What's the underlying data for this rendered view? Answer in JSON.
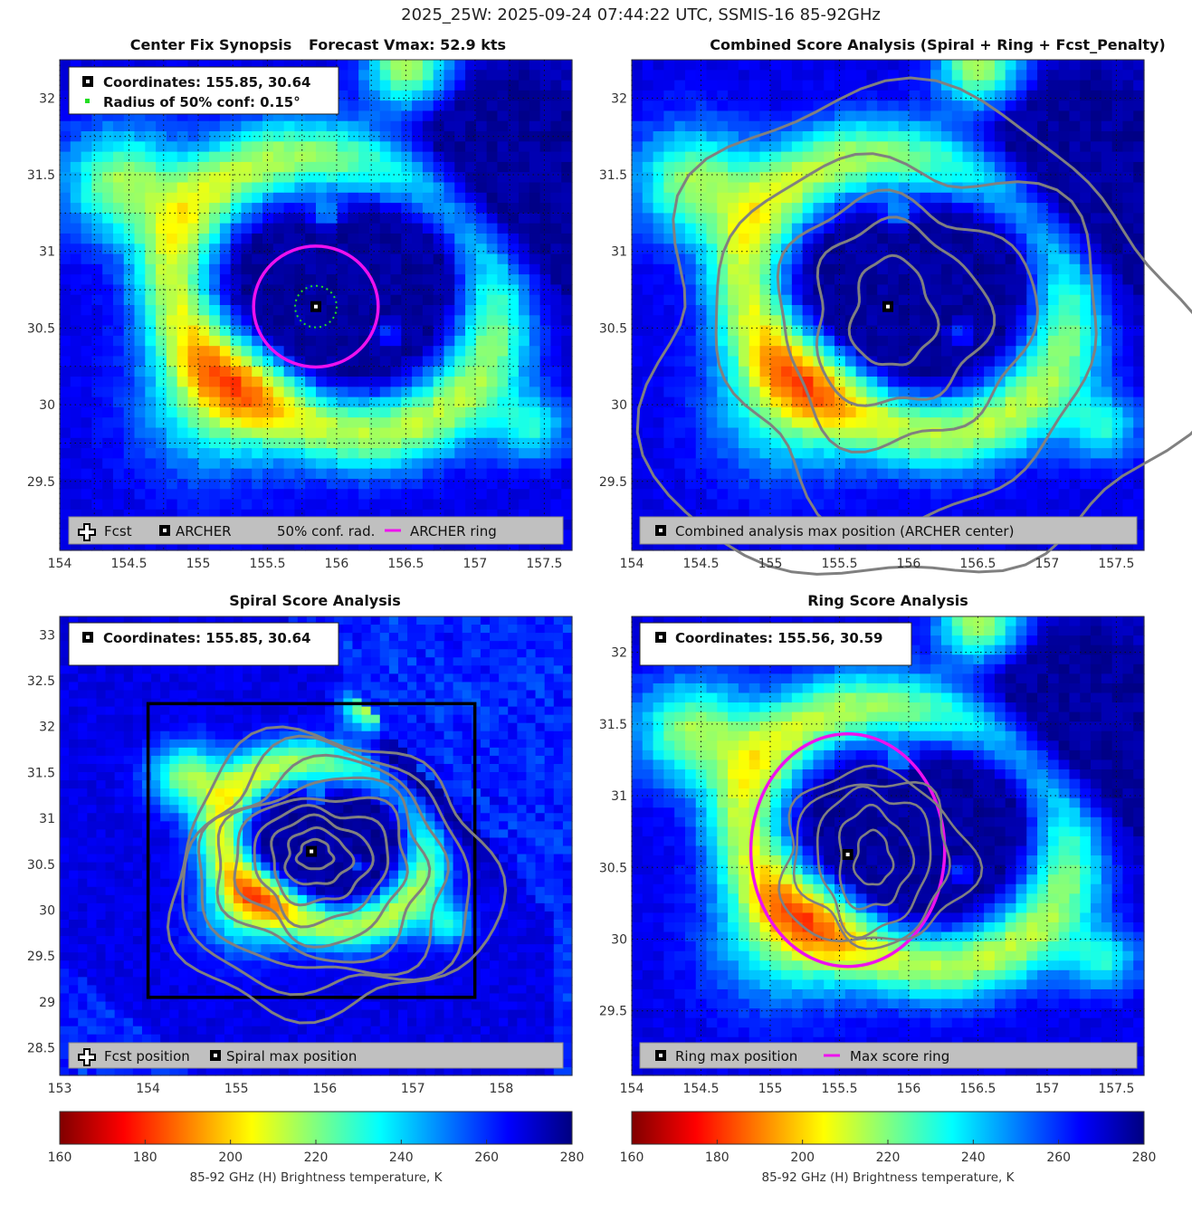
{
  "figure": {
    "title": "2025_25W: 2025-09-24 07:44:22 UTC, SSMIS-16 85-92GHz"
  },
  "colormap": {
    "name": "jet (reversed)",
    "stops": [
      "#800000",
      "#ff0000",
      "#ff8000",
      "#ffff00",
      "#80ff80",
      "#00ffff",
      "#0080ff",
      "#0000ff",
      "#000080"
    ],
    "cold_core": "#0000a0",
    "ring_color": "#ee11ee",
    "contour_color": "#808080",
    "legend_bg": "#c0c0c0"
  },
  "panels": [
    {
      "id": "center-fix",
      "title_left": "Center Fix Synopsis",
      "title_right": "Forecast Vmax: 52.9 kts",
      "x_ticks": [
        "154",
        "154.5",
        "155",
        "155.5",
        "156",
        "156.5",
        "157",
        "157.5"
      ],
      "y_ticks": [
        "32",
        "31.5",
        "31",
        "30.5",
        "30",
        "29.5"
      ],
      "info": [
        "Coordinates: 155.85, 30.64",
        "Radius of 50% conf: 0.15°"
      ],
      "legend": [
        "Fcst",
        "ARCHER",
        "50% conf. rad.",
        "ARCHER ring"
      ]
    },
    {
      "id": "combined",
      "title": "Combined Score Analysis (Spiral + Ring + Fcst_Penalty)",
      "x_ticks": [
        "154",
        "154.5",
        "155",
        "155.5",
        "156",
        "156.5",
        "157",
        "157.5"
      ],
      "y_ticks": [
        "32",
        "31.5",
        "31",
        "30.5",
        "30",
        "29.5"
      ],
      "legend": [
        "Combined analysis max position (ARCHER center)"
      ]
    },
    {
      "id": "spiral",
      "title": "Spiral Score Analysis",
      "x_ticks": [
        "153",
        "154",
        "155",
        "156",
        "157",
        "158"
      ],
      "y_ticks": [
        "33",
        "32.5",
        "32",
        "31.5",
        "31",
        "30.5",
        "30",
        "29.5",
        "29",
        "28.5"
      ],
      "info": [
        "Coordinates: 155.85, 30.64"
      ],
      "legend": [
        "Fcst position",
        "Spiral max position"
      ]
    },
    {
      "id": "ring",
      "title": "Ring Score Analysis",
      "x_ticks": [
        "154",
        "154.5",
        "155",
        "155.5",
        "156",
        "156.5",
        "157",
        "157.5"
      ],
      "y_ticks": [
        "32",
        "31.5",
        "31",
        "30.5",
        "30",
        "29.5"
      ],
      "info": [
        "Coordinates: 155.56, 30.59"
      ],
      "legend": [
        "Ring max position",
        "Max score ring"
      ]
    }
  ],
  "colorbars": [
    {
      "id": "left",
      "ticks": [
        "160",
        "180",
        "200",
        "220",
        "240",
        "260",
        "280"
      ],
      "label": "85-92 GHz (H) Brightness temperature, K"
    },
    {
      "id": "right",
      "ticks": [
        "160",
        "180",
        "200",
        "220",
        "240",
        "260",
        "280"
      ],
      "label": "85-92 GHz (H) Brightness temperature, K"
    }
  ],
  "chart_data": [
    {
      "type": "heatmap",
      "title": "Center Fix Synopsis — Forecast Vmax: 52.9 kts",
      "xlabel": "",
      "ylabel": "",
      "xlim": [
        154.0,
        157.7
      ],
      "ylim": [
        29.05,
        32.25
      ],
      "value_range_K": [
        160,
        280
      ],
      "center": [
        155.85,
        30.64
      ],
      "ring_radius_deg": 0.45,
      "conf_radius_deg": 0.15,
      "grid": true
    },
    {
      "type": "heatmap",
      "title": "Combined Score Analysis (Spiral + Ring + Fcst_Penalty)",
      "xlim": [
        154.0,
        157.7
      ],
      "ylim": [
        29.05,
        32.25
      ],
      "value_range_K": [
        160,
        280
      ],
      "max_position": [
        155.85,
        30.64
      ],
      "grid": true
    },
    {
      "type": "heatmap",
      "title": "Spiral Score Analysis",
      "xlim": [
        153.0,
        158.8
      ],
      "ylim": [
        28.2,
        33.2
      ],
      "value_range_K": [
        160,
        280
      ],
      "max_position": [
        155.85,
        30.64
      ],
      "search_box": {
        "lon": [
          154.0,
          157.7
        ],
        "lat": [
          29.05,
          32.25
        ]
      },
      "grid": false
    },
    {
      "type": "heatmap",
      "title": "Ring Score Analysis",
      "xlim": [
        154.0,
        157.7
      ],
      "ylim": [
        29.05,
        32.25
      ],
      "value_range_K": [
        160,
        280
      ],
      "max_position": [
        155.56,
        30.59
      ],
      "ring_center": [
        155.56,
        30.62
      ],
      "ring_radius_deg": 0.7,
      "grid": true
    }
  ]
}
